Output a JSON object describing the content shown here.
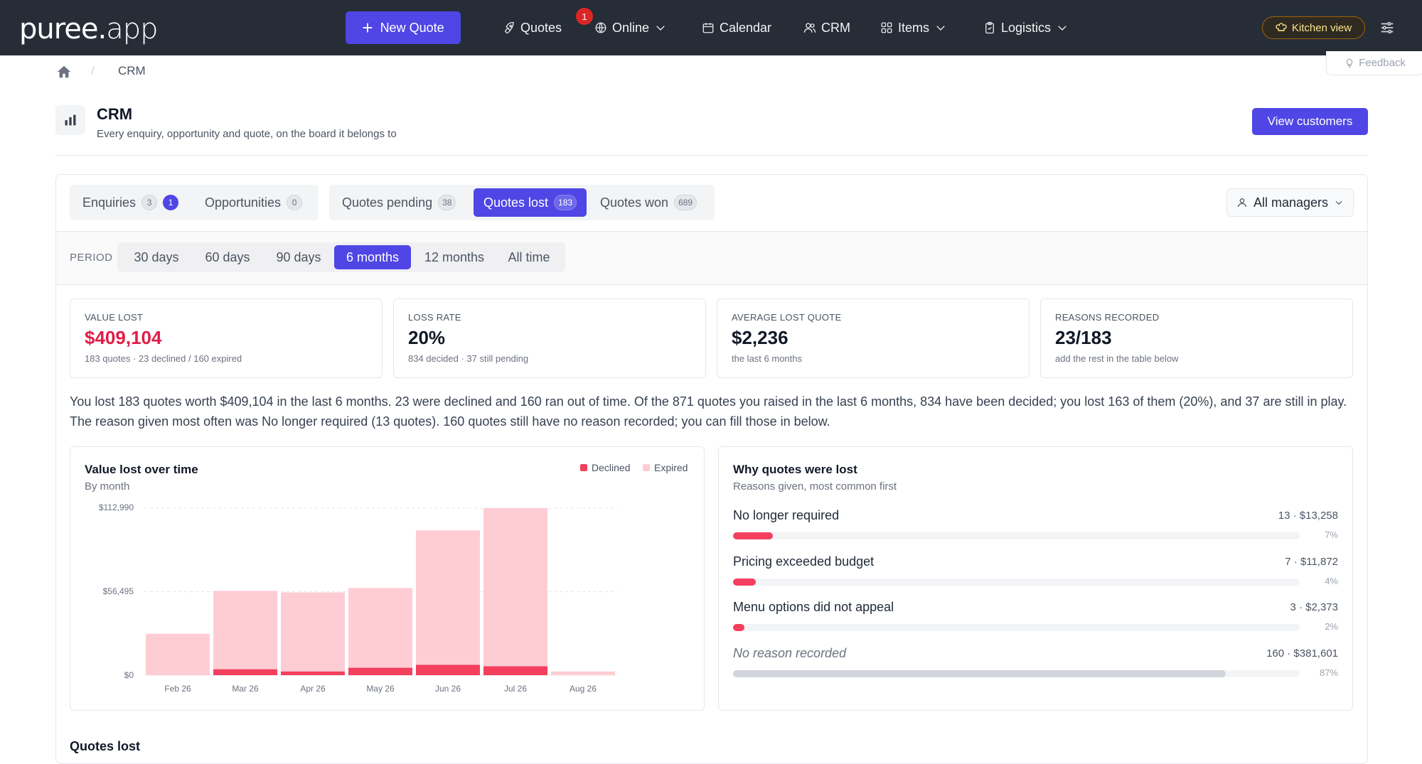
{
  "nav": {
    "logo_main": "puree.",
    "logo_app": "app",
    "new_quote": "New Quote",
    "quotes": "Quotes",
    "quotes_badge": "1",
    "online": "Online",
    "calendar": "Calendar",
    "crm": "CRM",
    "items": "Items",
    "logistics": "Logistics",
    "kitchen_view": "Kitchen view"
  },
  "breadcrumb": {
    "current": "CRM"
  },
  "feedback": "Feedback",
  "header": {
    "title": "CRM",
    "subtitle": "Every enquiry, opportunity and quote, on the board it belongs to",
    "view_customers": "View customers"
  },
  "tabs": {
    "enquiries": {
      "label": "Enquiries",
      "count": "3",
      "alert": "1"
    },
    "opportunities": {
      "label": "Opportunities",
      "count": "0"
    },
    "quotes_pending": {
      "label": "Quotes pending",
      "count": "38"
    },
    "quotes_lost": {
      "label": "Quotes lost",
      "count": "183"
    },
    "quotes_won": {
      "label": "Quotes won",
      "count": "689"
    }
  },
  "managers": "All managers",
  "period": {
    "label": "PERIOD",
    "options": [
      "30 days",
      "60 days",
      "90 days",
      "6 months",
      "12 months",
      "All time"
    ],
    "selected": "6 months"
  },
  "stats": [
    {
      "label": "VALUE LOST",
      "value": "$409,104",
      "sub": "183 quotes · 23 declined / 160 expired"
    },
    {
      "label": "LOSS RATE",
      "value": "20%",
      "sub": "834 decided · 37 still pending"
    },
    {
      "label": "AVERAGE LOST QUOTE",
      "value": "$2,236",
      "sub": "the last 6 months"
    },
    {
      "label": "REASONS RECORDED",
      "value": "23/183",
      "sub": "add the rest in the table below"
    }
  ],
  "summary": "You lost 183 quotes worth $409,104 in the last 6 months. 23 were declined and 160 ran out of time. Of the 871 quotes you raised in the last 6 months, 834 have been decided; you lost 163 of them (20%), and 37 are still in play. The reason given most often was No longer required (13 quotes). 160 quotes still have no reason recorded; you can fill those in below.",
  "colors": {
    "accent": "#4f46e5",
    "declined": "#f43f5e",
    "expired": "#fecdd3",
    "lost_value": "#e11d48"
  },
  "chart_data": {
    "type": "bar",
    "title": "Value lost over time",
    "subtitle": "By month",
    "categories": [
      "Feb 26",
      "Mar 26",
      "Apr 26",
      "May 26",
      "Jun 26",
      "Jul 26",
      "Aug 26"
    ],
    "series": [
      {
        "name": "Declined",
        "values": [
          0,
          4000,
          2500,
          5000,
          7000,
          6000,
          0
        ]
      },
      {
        "name": "Expired",
        "values": [
          28000,
          53000,
          53500,
          54000,
          91000,
          106990,
          2500
        ]
      }
    ],
    "stacked": true,
    "yticks": [
      "$0",
      "$56,495",
      "$112,990"
    ],
    "ylim": [
      0,
      112990
    ],
    "legend": "top-right"
  },
  "reasons": {
    "title": "Why quotes were lost",
    "subtitle": "Reasons given, most common first",
    "items": [
      {
        "name": "No longer required",
        "value": "13 · $13,258",
        "pct": "7%",
        "fraction": 0.07
      },
      {
        "name": "Pricing exceeded budget",
        "value": "7 · $11,872",
        "pct": "4%",
        "fraction": 0.04
      },
      {
        "name": "Menu options did not appeal",
        "value": "3 · $2,373",
        "pct": "2%",
        "fraction": 0.02
      },
      {
        "name": "No reason recorded",
        "value": "160 · $381,601",
        "pct": "87%",
        "fraction": 0.87
      }
    ]
  },
  "section": {
    "title": "Quotes lost"
  }
}
